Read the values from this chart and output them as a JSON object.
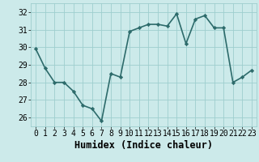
{
  "x": [
    0,
    1,
    2,
    3,
    4,
    5,
    6,
    7,
    8,
    9,
    10,
    11,
    12,
    13,
    14,
    15,
    16,
    17,
    18,
    19,
    20,
    21,
    22,
    23
  ],
  "y": [
    29.9,
    28.8,
    28.0,
    28.0,
    27.5,
    26.7,
    26.5,
    25.8,
    28.5,
    28.3,
    30.9,
    31.1,
    31.3,
    31.3,
    31.2,
    31.9,
    30.2,
    31.6,
    31.8,
    31.1,
    31.1,
    28.0,
    28.3,
    28.7
  ],
  "line_color": "#2d6b6b",
  "marker": "D",
  "marker_size": 2.2,
  "bg_color": "#cceaea",
  "grid_color": "#9ecece",
  "xlabel": "Humidex (Indice chaleur)",
  "xlim": [
    -0.5,
    23.5
  ],
  "ylim": [
    25.5,
    32.5
  ],
  "yticks": [
    26,
    27,
    28,
    29,
    30,
    31,
    32
  ],
  "xticks": [
    0,
    1,
    2,
    3,
    4,
    5,
    6,
    7,
    8,
    9,
    10,
    11,
    12,
    13,
    14,
    15,
    16,
    17,
    18,
    19,
    20,
    21,
    22,
    23
  ],
  "linewidth": 1.2,
  "xlabel_fontsize": 8.5,
  "tick_fontsize": 7.0
}
